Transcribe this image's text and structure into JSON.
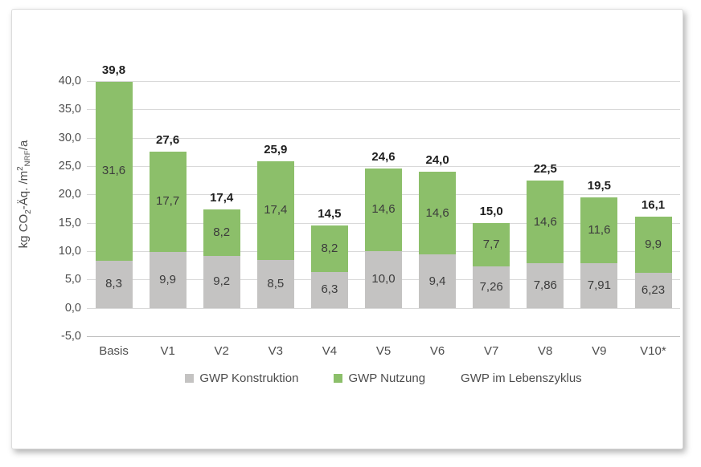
{
  "chart_data": {
    "type": "bar",
    "stacked": true,
    "title": "",
    "categories": [
      "Basis",
      "V1",
      "V2",
      "V3",
      "V4",
      "V5",
      "V6",
      "V7",
      "V8",
      "V9",
      "V10*"
    ],
    "series": [
      {
        "name": "GWP Konstruktion",
        "color": "#c4c3c2",
        "values": [
          8.3,
          9.9,
          9.2,
          8.5,
          6.3,
          10.0,
          9.4,
          7.26,
          7.86,
          7.91,
          6.23
        ],
        "labels": [
          "8,3",
          "9,9",
          "9,2",
          "8,5",
          "6,3",
          "10,0",
          "9,4",
          "7,26",
          "7,86",
          "7,91",
          "6,23"
        ]
      },
      {
        "name": "GWP Nutzung",
        "color": "#8cbf6a",
        "values": [
          31.6,
          17.7,
          8.2,
          17.4,
          8.2,
          14.6,
          14.6,
          7.7,
          14.6,
          11.6,
          9.9
        ],
        "labels": [
          "31,6",
          "17,7",
          "8,2",
          "17,4",
          "8,2",
          "14,6",
          "14,6",
          "7,7",
          "14,6",
          "11,6",
          "9,9"
        ]
      }
    ],
    "totals": {
      "name": "GWP im Lebenszyklus",
      "values": [
        39.8,
        27.6,
        17.4,
        25.9,
        14.5,
        24.6,
        24.0,
        15.0,
        22.5,
        19.5,
        16.1
      ],
      "labels": [
        "39,8",
        "27,6",
        "17,4",
        "25,9",
        "14,5",
        "24,6",
        "24,0",
        "15,0",
        "22,5",
        "19,5",
        "16,1"
      ]
    },
    "ylabel_parts": {
      "p1": "kg CO",
      "sub1": "2",
      "p2": "-Äq. /m",
      "sup1": "2",
      "sub2": "NRF",
      "p3": "/a"
    },
    "ylabel_text": "kg CO2-Äq. /m2 NRF/a",
    "yticks": [
      {
        "value": 40,
        "label": "40,0"
      },
      {
        "value": 35,
        "label": "35,0"
      },
      {
        "value": 30,
        "label": "30,0"
      },
      {
        "value": 25,
        "label": "25,0"
      },
      {
        "value": 20,
        "label": "20,0"
      },
      {
        "value": 15,
        "label": "15,0"
      },
      {
        "value": 10,
        "label": "10,0"
      },
      {
        "value": 5,
        "label": "5,0"
      },
      {
        "value": 0,
        "label": "0,0"
      },
      {
        "value": -5,
        "label": "-5,0"
      }
    ],
    "ylim": [
      -5,
      40
    ],
    "grid": true,
    "legend_position": "bottom",
    "legend": [
      {
        "label": "GWP Konstruktion",
        "swatch": "#c4c3c2"
      },
      {
        "label": "GWP Nutzung",
        "swatch": "#8cbf6a"
      },
      {
        "label": "GWP im Lebenszyklus",
        "swatch": null
      }
    ]
  },
  "colors": {
    "green": "#8cbf6a",
    "gray": "#c4c3c2",
    "gridline": "#d9d9d9",
    "axis_line": "#bfbfbf",
    "segment_label": "#3c3c3c",
    "total_label": "#1f1f1f",
    "tick_label": "#4d4d4d",
    "legend_text": "#4d4d4d",
    "card_background": "#ffffff"
  }
}
